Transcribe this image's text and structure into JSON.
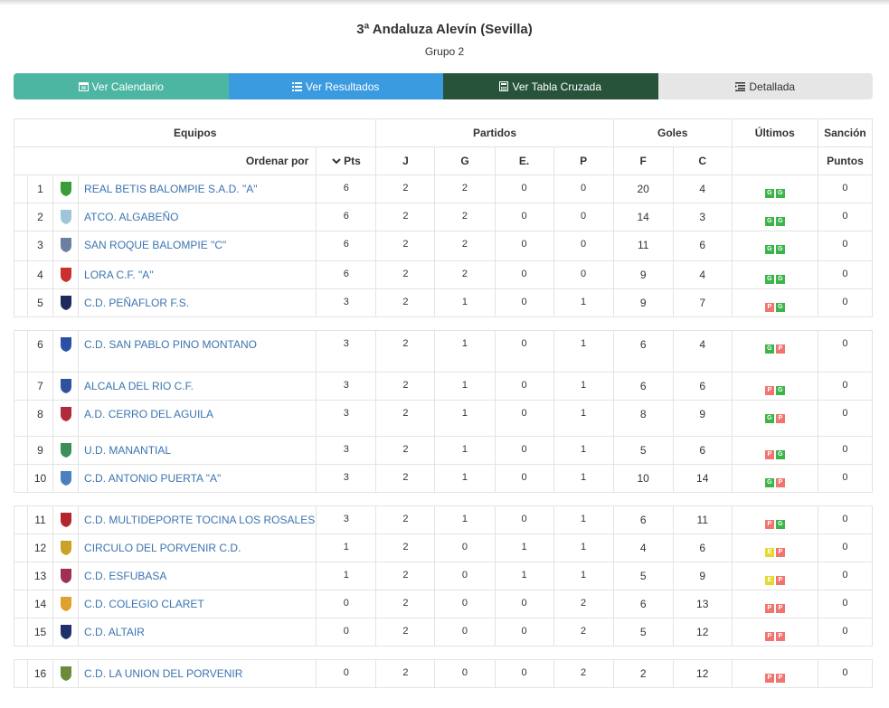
{
  "page": {
    "title": "3ª Andaluza Alevín (Sevilla)",
    "subtitle": "Grupo 2"
  },
  "tabs": [
    {
      "label": "Ver Calendario",
      "icon": "calendar-icon"
    },
    {
      "label": "Ver Resultados",
      "icon": "list-icon"
    },
    {
      "label": "Ver Tabla Cruzada",
      "icon": "calculator-icon"
    },
    {
      "label": "Detallada",
      "icon": "list-detail-icon"
    }
  ],
  "table": {
    "groups": {
      "equipos": "Equipos",
      "partidos": "Partidos",
      "goles": "Goles",
      "ultimos": "Últimos",
      "sancion": "Sanción"
    },
    "subheaders": {
      "ordenar": "Ordenar por",
      "pts": "Pts",
      "j": "J",
      "g": "G",
      "e": "E.",
      "p": "P",
      "f": "F",
      "c": "C",
      "puntos": "Puntos"
    },
    "rows": [
      {
        "pos": "1",
        "team": "REAL BETIS BALOMPIE S.A.D. \"A\"",
        "pts": "6",
        "j": "2",
        "g": "2",
        "e": "0",
        "p": "0",
        "f": "20",
        "c": "4",
        "last": [
          "G",
          "G"
        ],
        "sancion": "0",
        "logo": "#3a9d3a"
      },
      {
        "pos": "2",
        "team": "ATCO. ALGABEÑO",
        "pts": "6",
        "j": "2",
        "g": "2",
        "e": "0",
        "p": "0",
        "f": "14",
        "c": "3",
        "last": [
          "G",
          "G"
        ],
        "sancion": "0",
        "logo": "#9fc6d8"
      },
      {
        "pos": "3",
        "team": "SAN ROQUE BALOMPIE \"C\"",
        "pts": "6",
        "j": "2",
        "g": "2",
        "e": "0",
        "p": "0",
        "f": "11",
        "c": "6",
        "last": [
          "G",
          "G"
        ],
        "sancion": "0",
        "logo": "#6b7fa0"
      },
      {
        "pos": "4",
        "team": "LORA C.F. \"A\"",
        "pts": "6",
        "j": "2",
        "g": "2",
        "e": "0",
        "p": "0",
        "f": "9",
        "c": "4",
        "last": [
          "G",
          "G"
        ],
        "sancion": "0",
        "logo": "#c9312f"
      },
      {
        "pos": "5",
        "team": "C.D. PEÑAFLOR F.S.",
        "pts": "3",
        "j": "2",
        "g": "1",
        "e": "0",
        "p": "1",
        "f": "9",
        "c": "7",
        "last": [
          "P",
          "G"
        ],
        "sancion": "0",
        "logo": "#1c2a5c"
      },
      {
        "pos": "6",
        "team": "C.D. SAN PABLO PINO MONTANO",
        "pts": "3",
        "j": "2",
        "g": "1",
        "e": "0",
        "p": "1",
        "f": "6",
        "c": "4",
        "last": [
          "G",
          "P"
        ],
        "sancion": "0",
        "logo": "#2b4fa5"
      },
      {
        "pos": "7",
        "team": "ALCALA DEL RIO C.F.",
        "pts": "3",
        "j": "2",
        "g": "1",
        "e": "0",
        "p": "1",
        "f": "6",
        "c": "6",
        "last": [
          "P",
          "G"
        ],
        "sancion": "0",
        "logo": "#3050a0"
      },
      {
        "pos": "8",
        "team": "A.D. CERRO DEL AGUILA",
        "pts": "3",
        "j": "2",
        "g": "1",
        "e": "0",
        "p": "1",
        "f": "8",
        "c": "9",
        "last": [
          "G",
          "P"
        ],
        "sancion": "0",
        "logo": "#b02a3a"
      },
      {
        "pos": "9",
        "team": "U.D. MANANTIAL",
        "pts": "3",
        "j": "2",
        "g": "1",
        "e": "0",
        "p": "1",
        "f": "5",
        "c": "6",
        "last": [
          "P",
          "G"
        ],
        "sancion": "0",
        "logo": "#3d8f5a"
      },
      {
        "pos": "10",
        "team": "C.D. ANTONIO PUERTA \"A\"",
        "pts": "3",
        "j": "2",
        "g": "1",
        "e": "0",
        "p": "1",
        "f": "10",
        "c": "14",
        "last": [
          "G",
          "P"
        ],
        "sancion": "0",
        "logo": "#4a7fc0"
      },
      {
        "pos": "11",
        "team": "C.D. MULTIDEPORTE TOCINA LOS ROSALES",
        "pts": "3",
        "j": "2",
        "g": "1",
        "e": "0",
        "p": "1",
        "f": "6",
        "c": "11",
        "last": [
          "P",
          "G"
        ],
        "sancion": "0",
        "logo": "#b3262e"
      },
      {
        "pos": "12",
        "team": "CIRCULO DEL PORVENIR C.D.",
        "pts": "1",
        "j": "2",
        "g": "0",
        "e": "1",
        "p": "1",
        "f": "4",
        "c": "6",
        "last": [
          "E",
          "P"
        ],
        "sancion": "0",
        "logo": "#c9a227"
      },
      {
        "pos": "13",
        "team": "C.D. ESFUBASA",
        "pts": "1",
        "j": "2",
        "g": "0",
        "e": "1",
        "p": "1",
        "f": "5",
        "c": "9",
        "last": [
          "E",
          "P"
        ],
        "sancion": "0",
        "logo": "#a03050"
      },
      {
        "pos": "14",
        "team": "C.D. COLEGIO CLARET",
        "pts": "0",
        "j": "2",
        "g": "0",
        "e": "0",
        "p": "2",
        "f": "6",
        "c": "13",
        "last": [
          "P",
          "P"
        ],
        "sancion": "0",
        "logo": "#e0a030"
      },
      {
        "pos": "15",
        "team": "C.D. ALTAIR",
        "pts": "0",
        "j": "2",
        "g": "0",
        "e": "0",
        "p": "2",
        "f": "5",
        "c": "12",
        "last": [
          "P",
          "P"
        ],
        "sancion": "0",
        "logo": "#1f2f6a"
      },
      {
        "pos": "16",
        "team": "C.D. LA UNION DEL PORVENIR",
        "pts": "0",
        "j": "2",
        "g": "0",
        "e": "0",
        "p": "2",
        "f": "2",
        "c": "12",
        "last": [
          "P",
          "P"
        ],
        "sancion": "0",
        "logo": "#6b8a3a"
      }
    ]
  }
}
